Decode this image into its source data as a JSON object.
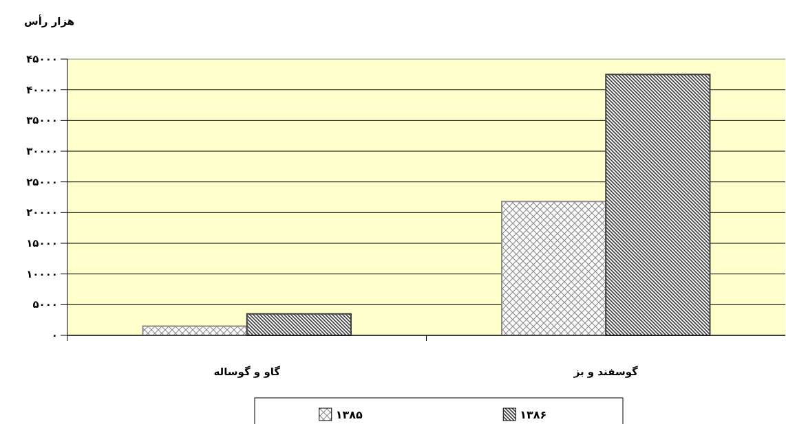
{
  "chart_data": {
    "type": "bar",
    "ylabel": "هزار رأس",
    "categories": [
      "گاو و گوساله",
      "گوسفند و بز"
    ],
    "series": [
      {
        "name": "۱۳۸۵",
        "color": "#8c8c8c",
        "values": [
          1500,
          21800
        ]
      },
      {
        "name": "۱۳۸۶",
        "color": "#404040",
        "values": [
          3500,
          42500
        ]
      }
    ],
    "ylim": [
      0,
      45000
    ],
    "yticks": [
      {
        "value": 0,
        "label": "۰"
      },
      {
        "value": 5000,
        "label": "۵۰۰۰"
      },
      {
        "value": 10000,
        "label": "۱۰۰۰۰"
      },
      {
        "value": 15000,
        "label": "۱۵۰۰۰"
      },
      {
        "value": 20000,
        "label": "۲۰۰۰۰"
      },
      {
        "value": 25000,
        "label": "۲۵۰۰۰"
      },
      {
        "value": 30000,
        "label": "۳۰۰۰۰"
      },
      {
        "value": 35000,
        "label": "۳۵۰۰۰"
      },
      {
        "value": 40000,
        "label": "۴۰۰۰۰"
      },
      {
        "value": 45000,
        "label": "۴۵۰۰۰"
      }
    ],
    "grid": "y",
    "legend": "bottom"
  }
}
